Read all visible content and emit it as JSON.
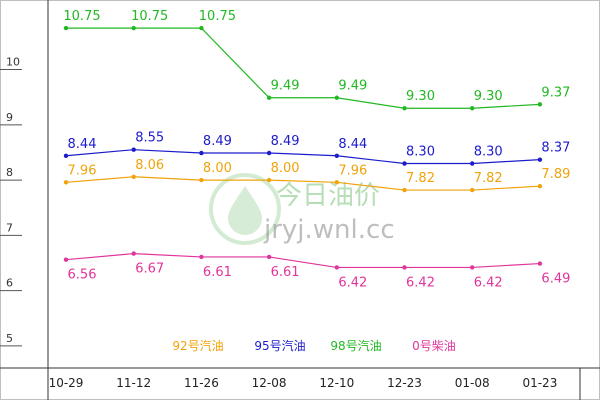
{
  "chart_data": {
    "type": "line",
    "categories": [
      "10-29",
      "11-12",
      "11-26",
      "12-08",
      "12-10",
      "12-23",
      "01-08",
      "01-23"
    ],
    "ylim": [
      4.6,
      11.15
    ],
    "yticks": [
      5,
      6,
      7,
      8,
      9,
      10
    ],
    "series": [
      {
        "name": "92号汽油",
        "color": "#f0a30a",
        "values": [
          7.96,
          8.06,
          8.0,
          8.0,
          7.96,
          7.82,
          7.82,
          7.89
        ],
        "labels": [
          "7.96",
          "8.06",
          "8.00",
          "8.00",
          "7.96",
          "7.82",
          "7.82",
          "7.89"
        ],
        "label_pos": "above"
      },
      {
        "name": "95号汽油",
        "color": "#1c1ccc",
        "values": [
          8.44,
          8.55,
          8.49,
          8.49,
          8.44,
          8.3,
          8.3,
          8.37
        ],
        "labels": [
          "8.44",
          "8.55",
          "8.49",
          "8.49",
          "8.44",
          "8.30",
          "8.30",
          "8.37"
        ],
        "label_pos": "above"
      },
      {
        "name": "98号汽油",
        "color": "#22b822",
        "values": [
          10.75,
          10.75,
          10.75,
          9.49,
          9.49,
          9.3,
          9.3,
          9.37
        ],
        "labels": [
          "10.75",
          "10.75",
          "10.75",
          "9.49",
          "9.49",
          "9.30",
          "9.30",
          "9.37"
        ],
        "label_pos": "above"
      },
      {
        "name": "0号柴油",
        "color": "#e0359a",
        "values": [
          6.56,
          6.67,
          6.61,
          6.61,
          6.42,
          6.42,
          6.42,
          6.49
        ],
        "labels": [
          "6.56",
          "6.67",
          "6.61",
          "6.61",
          "6.42",
          "6.42",
          "6.42",
          "6.49"
        ],
        "label_pos": "below"
      }
    ],
    "legend": [
      "92号汽油",
      "95号汽油",
      "98号汽油",
      "0号柴油"
    ],
    "legend_position": "bottom-center",
    "grid": false
  },
  "watermark": {
    "title": "今日油价",
    "url": "jryj.wnl.cc"
  }
}
